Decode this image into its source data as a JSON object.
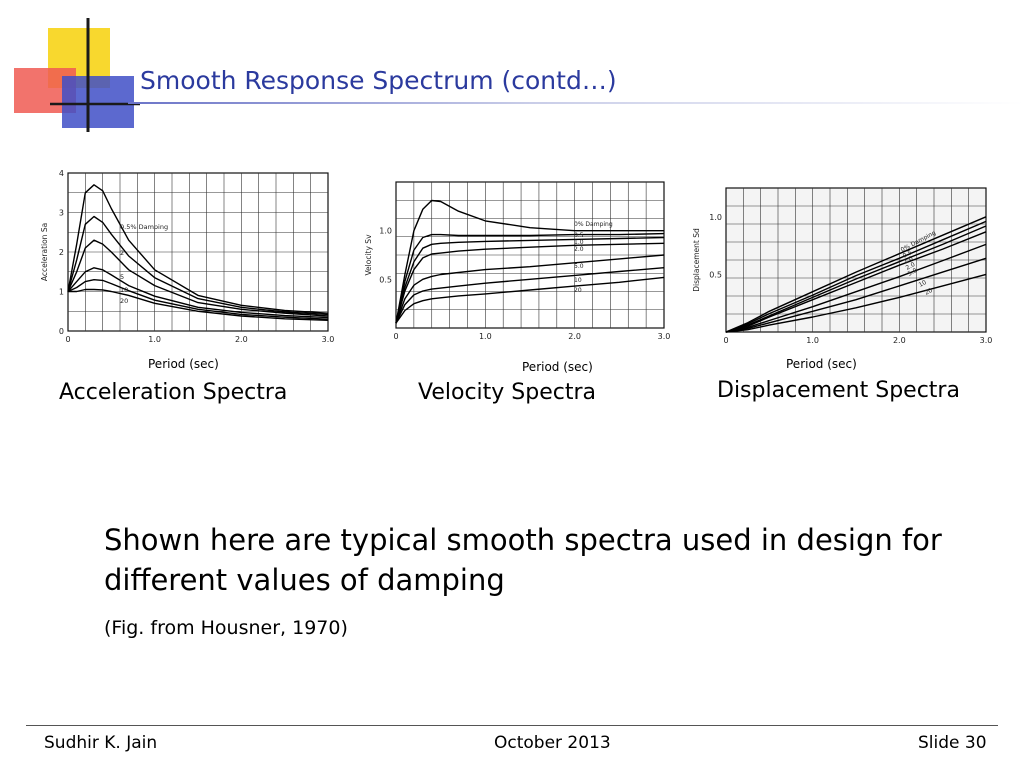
{
  "slide": {
    "title": "Smooth Response Spectrum (contd…)",
    "body": "Shown here are typical smooth spectra used in design for different values of damping",
    "source": "(Fig. from Housner, 1970)",
    "footer": {
      "author": "Sudhir K. Jain",
      "date": "October 2013",
      "slide_number": "Slide 30"
    },
    "colors": {
      "title": "#2b3a9e",
      "logo_yellow": "#f7d417",
      "logo_red": "#f05a52",
      "logo_blue": "#3f4fc7"
    }
  },
  "chart_data": [
    {
      "type": "line",
      "caption": "Acceleration Spectra",
      "xlabel_below": "Period (sec)",
      "ylabel": "Acceleration  Sa",
      "xlim": [
        0,
        3.0
      ],
      "ylim": [
        0,
        4
      ],
      "grid": true,
      "x_ticks": [
        "0",
        "1.0",
        "2.0",
        "3.0"
      ],
      "y_ticks": [
        "0",
        "1",
        "2",
        "3",
        "4"
      ],
      "series_label_suffix": "% Damping",
      "series": [
        {
          "name": "0.5",
          "x": [
            0,
            0.1,
            0.2,
            0.3,
            0.4,
            0.5,
            0.7,
            1.0,
            1.5,
            2.0,
            2.5,
            3.0
          ],
          "values": [
            1.0,
            2.2,
            3.5,
            3.7,
            3.55,
            3.1,
            2.3,
            1.55,
            0.9,
            0.65,
            0.52,
            0.45
          ]
        },
        {
          "name": "2",
          "x": [
            0,
            0.1,
            0.2,
            0.3,
            0.4,
            0.5,
            0.7,
            1.0,
            1.5,
            2.0,
            2.5,
            3.0
          ],
          "values": [
            1.0,
            1.8,
            2.7,
            2.9,
            2.75,
            2.45,
            1.9,
            1.35,
            0.82,
            0.6,
            0.48,
            0.42
          ]
        },
        {
          "name": "5",
          "x": [
            0,
            0.1,
            0.2,
            0.3,
            0.4,
            0.5,
            0.7,
            1.0,
            1.5,
            2.0,
            2.5,
            3.0
          ],
          "values": [
            1.0,
            1.5,
            2.1,
            2.3,
            2.2,
            2.0,
            1.55,
            1.15,
            0.72,
            0.55,
            0.45,
            0.38
          ]
        },
        {
          "name": "10",
          "x": [
            0,
            0.1,
            0.2,
            0.3,
            0.4,
            0.5,
            0.7,
            1.0,
            1.5,
            2.0,
            2.5,
            3.0
          ],
          "values": [
            1.0,
            1.25,
            1.5,
            1.6,
            1.55,
            1.42,
            1.15,
            0.88,
            0.6,
            0.47,
            0.39,
            0.34
          ]
        },
        {
          "name": "20",
          "x": [
            0,
            0.1,
            0.2,
            0.3,
            0.4,
            0.5,
            0.7,
            1.0,
            1.5,
            2.0,
            2.5,
            3.0
          ],
          "values": [
            1.0,
            1.1,
            1.25,
            1.3,
            1.28,
            1.2,
            1.02,
            0.78,
            0.55,
            0.42,
            0.35,
            0.3
          ]
        },
        {
          "name": "",
          "x": [
            0,
            0.1,
            0.2,
            0.3,
            0.4,
            0.5,
            0.7,
            1.0,
            1.5,
            2.0,
            2.5,
            3.0
          ],
          "values": [
            1.0,
            1.0,
            1.05,
            1.05,
            1.04,
            1.0,
            0.9,
            0.7,
            0.5,
            0.38,
            0.31,
            0.27
          ]
        }
      ]
    },
    {
      "type": "line",
      "caption": "Velocity Spectra",
      "xlabel_below": "Period (sec)",
      "ylabel": "Velocity  Sv",
      "xlim": [
        0,
        3.0
      ],
      "ylim": [
        0,
        1.5
      ],
      "grid": true,
      "x_ticks": [
        "0",
        "1.0",
        "2.0",
        "3.0"
      ],
      "y_ticks": [
        "0.5",
        "1.0"
      ],
      "series_label_suffix": "% Damping",
      "series": [
        {
          "name": "0",
          "x": [
            0,
            0.1,
            0.2,
            0.3,
            0.4,
            0.5,
            0.7,
            1.0,
            1.5,
            2.0,
            2.5,
            3.0
          ],
          "values": [
            0.05,
            0.55,
            1.0,
            1.22,
            1.31,
            1.3,
            1.2,
            1.1,
            1.03,
            1.0,
            1.0,
            1.0
          ]
        },
        {
          "name": "0.5",
          "x": [
            0,
            0.1,
            0.2,
            0.3,
            0.4,
            0.5,
            0.7,
            1.0,
            1.5,
            2.0,
            2.5,
            3.0
          ],
          "values": [
            0.05,
            0.48,
            0.8,
            0.93,
            0.96,
            0.96,
            0.95,
            0.95,
            0.95,
            0.96,
            0.96,
            0.97
          ]
        },
        {
          "name": "1.0",
          "x": [
            0,
            0.1,
            0.2,
            0.3,
            0.4,
            0.5,
            0.7,
            1.0,
            1.5,
            2.0,
            2.5,
            3.0
          ],
          "values": [
            0.05,
            0.42,
            0.68,
            0.82,
            0.86,
            0.87,
            0.88,
            0.89,
            0.9,
            0.91,
            0.92,
            0.93
          ]
        },
        {
          "name": "2.0",
          "x": [
            0,
            0.1,
            0.2,
            0.3,
            0.4,
            0.5,
            0.7,
            1.0,
            1.5,
            2.0,
            2.5,
            3.0
          ],
          "values": [
            0.05,
            0.38,
            0.6,
            0.72,
            0.76,
            0.77,
            0.79,
            0.81,
            0.83,
            0.85,
            0.86,
            0.87
          ]
        },
        {
          "name": "5.0",
          "x": [
            0,
            0.1,
            0.2,
            0.3,
            0.4,
            0.5,
            0.7,
            1.0,
            1.5,
            2.0,
            2.5,
            3.0
          ],
          "values": [
            0.05,
            0.3,
            0.44,
            0.5,
            0.53,
            0.55,
            0.57,
            0.6,
            0.63,
            0.67,
            0.71,
            0.75
          ]
        },
        {
          "name": "10",
          "x": [
            0,
            0.1,
            0.2,
            0.3,
            0.4,
            0.5,
            0.7,
            1.0,
            1.5,
            2.0,
            2.5,
            3.0
          ],
          "values": [
            0.05,
            0.24,
            0.34,
            0.38,
            0.4,
            0.41,
            0.43,
            0.46,
            0.5,
            0.54,
            0.58,
            0.62
          ]
        },
        {
          "name": "20",
          "x": [
            0,
            0.1,
            0.2,
            0.3,
            0.4,
            0.5,
            0.7,
            1.0,
            1.5,
            2.0,
            2.5,
            3.0
          ],
          "values": [
            0.05,
            0.18,
            0.25,
            0.28,
            0.3,
            0.31,
            0.33,
            0.35,
            0.39,
            0.43,
            0.47,
            0.52
          ]
        }
      ]
    },
    {
      "type": "line",
      "caption": "Displacement Spectra",
      "xlabel_below": "Period (sec)",
      "ylabel": "Displacement  Sd",
      "xlim": [
        0,
        3.0
      ],
      "ylim": [
        0,
        1.25
      ],
      "grid": true,
      "x_ticks": [
        "0",
        "1.0",
        "2.0",
        "3.0"
      ],
      "y_ticks": [
        "0.5",
        "1.0"
      ],
      "series_label_suffix": "% Damping",
      "series": [
        {
          "name": "0",
          "x": [
            0,
            0.25,
            0.5,
            1.0,
            1.5,
            2.0,
            2.5,
            3.0
          ],
          "values": [
            0,
            0.08,
            0.18,
            0.35,
            0.52,
            0.68,
            0.84,
            1.0
          ]
        },
        {
          "name": "0.5",
          "x": [
            0,
            0.25,
            0.5,
            1.0,
            1.5,
            2.0,
            2.5,
            3.0
          ],
          "values": [
            0,
            0.07,
            0.16,
            0.32,
            0.49,
            0.64,
            0.8,
            0.96
          ]
        },
        {
          "name": "1.0",
          "x": [
            0,
            0.25,
            0.5,
            1.0,
            1.5,
            2.0,
            2.5,
            3.0
          ],
          "values": [
            0,
            0.06,
            0.14,
            0.3,
            0.46,
            0.61,
            0.76,
            0.92
          ]
        },
        {
          "name": "2.0",
          "x": [
            0,
            0.25,
            0.5,
            1.0,
            1.5,
            2.0,
            2.5,
            3.0
          ],
          "values": [
            0,
            0.05,
            0.13,
            0.28,
            0.43,
            0.58,
            0.72,
            0.87
          ]
        },
        {
          "name": "5.0",
          "x": [
            0,
            0.25,
            0.5,
            1.0,
            1.5,
            2.0,
            2.5,
            3.0
          ],
          "values": [
            0,
            0.04,
            0.1,
            0.22,
            0.35,
            0.48,
            0.62,
            0.76
          ]
        },
        {
          "name": "10",
          "x": [
            0,
            0.25,
            0.5,
            1.0,
            1.5,
            2.0,
            2.5,
            3.0
          ],
          "values": [
            0,
            0.03,
            0.08,
            0.18,
            0.28,
            0.4,
            0.52,
            0.64
          ]
        },
        {
          "name": "20",
          "x": [
            0,
            0.25,
            0.5,
            1.0,
            1.5,
            2.0,
            2.5,
            3.0
          ],
          "values": [
            0,
            0.02,
            0.06,
            0.13,
            0.21,
            0.3,
            0.4,
            0.5
          ]
        }
      ]
    }
  ]
}
